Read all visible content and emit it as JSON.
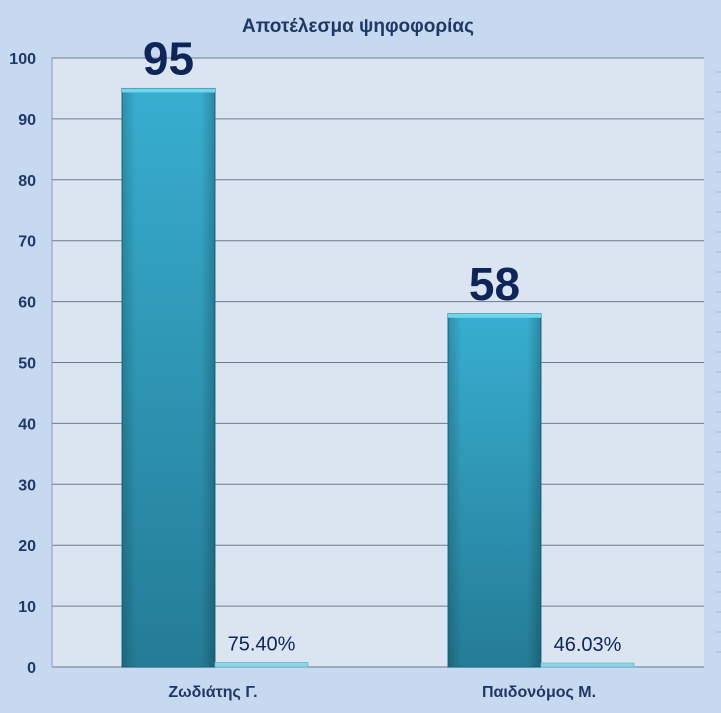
{
  "chart_data": {
    "type": "bar",
    "title": "Αποτέλεσμα ψηφοφορίας",
    "xlabel": "",
    "ylabel": "",
    "categories": [
      "Ζωδιάτης Γ.",
      "Παιδονόμος Μ."
    ],
    "series": [
      {
        "values": [
          95,
          58
        ],
        "data_labels": [
          "95",
          "58"
        ],
        "color": "#2e8fae"
      },
      {
        "values": [
          0.754,
          0.4603
        ],
        "data_labels": [
          "75.40%",
          "46.03%"
        ],
        "color": "#8fd3e6"
      }
    ],
    "ylim": [
      0,
      100
    ],
    "yticks": [
      "0",
      "10",
      "20",
      "30",
      "40",
      "50",
      "60",
      "70",
      "80",
      "90",
      "100"
    ],
    "grid": true,
    "legend": "none"
  },
  "colors": {
    "page_background": "#c6d9f1",
    "plot_background": "#dbe5f1",
    "text": "#1f3864",
    "big_label": "#0f2557",
    "gridline": "#6d7d8f"
  }
}
